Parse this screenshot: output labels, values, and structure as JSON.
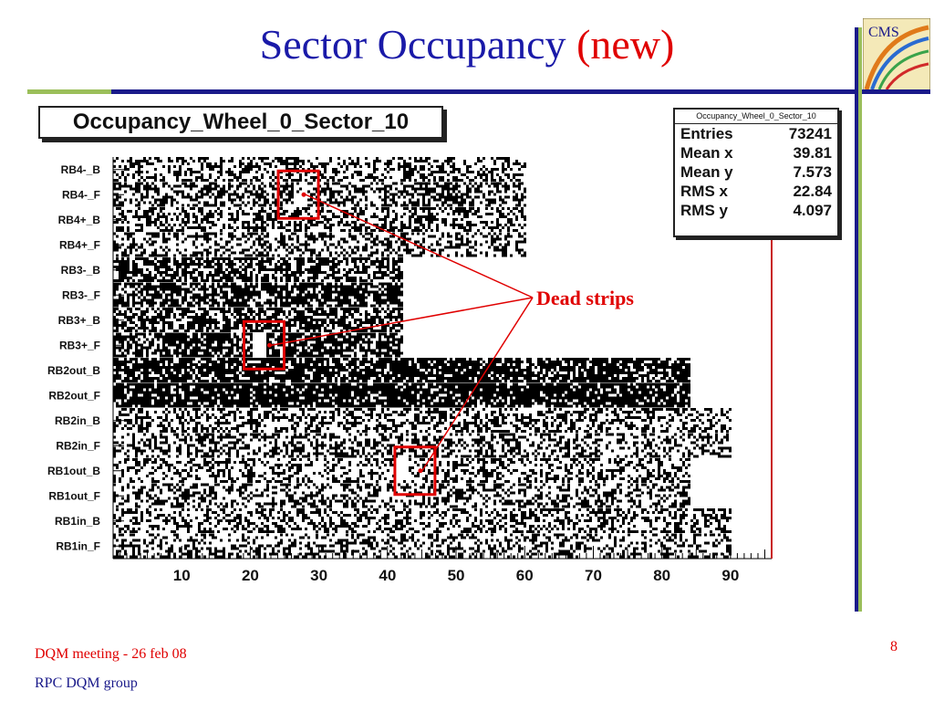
{
  "slide": {
    "title_main": "Sector Occupancy",
    "title_accent": "(new)",
    "footer_meeting": "DQM meeting - 26 feb 08",
    "footer_group": "RPC DQM group",
    "page_number": "8",
    "logo_text": "CMS",
    "colors": {
      "title": "#1a1aa8",
      "accent": "#e00000",
      "rule_dark": "#1a1a8a",
      "rule_light": "#9bbf5a"
    }
  },
  "annotation": {
    "label": "Dead strips",
    "targets": [
      {
        "x": 27,
        "y": "RB4-_F"
      },
      {
        "x": 22,
        "y": "RB3+_F"
      },
      {
        "x": 44,
        "y": "RB1out_B"
      }
    ]
  },
  "stats_box": {
    "title": "Occupancy_Wheel_0_Sector_10",
    "rows": [
      {
        "label": "Entries",
        "value": "73241"
      },
      {
        "label": "Mean x",
        "value": "39.81"
      },
      {
        "label": "Mean y",
        "value": "7.573"
      },
      {
        "label": "RMS x",
        "value": "22.84"
      },
      {
        "label": "RMS y",
        "value": "4.097"
      }
    ]
  },
  "chart_data": {
    "type": "heatmap",
    "title": "Occupancy_Wheel_0_Sector_10",
    "xlabel": "",
    "ylabel": "",
    "xlim": [
      0,
      96
    ],
    "x_ticks": [
      10,
      20,
      30,
      40,
      50,
      60,
      70,
      80,
      90
    ],
    "categories": [
      "RB4-_B",
      "RB4-_F",
      "RB4+_B",
      "RB4+_F",
      "RB3-_B",
      "RB3-_F",
      "RB3+_B",
      "RB3+_F",
      "RB2out_B",
      "RB2out_F",
      "RB2in_B",
      "RB2in_F",
      "RB1out_B",
      "RB1out_F",
      "RB1in_B",
      "RB1in_F"
    ],
    "row_strip_counts": [
      60,
      60,
      60,
      60,
      42,
      42,
      42,
      42,
      84,
      84,
      90,
      90,
      84,
      84,
      90,
      90
    ],
    "row_density": [
      0.42,
      0.52,
      0.45,
      0.4,
      0.62,
      0.66,
      0.64,
      0.7,
      0.76,
      0.82,
      0.42,
      0.4,
      0.38,
      0.4,
      0.4,
      0.36
    ],
    "dead_strips": [
      {
        "row": "RB4-_F",
        "strips": [
          27,
          28
        ]
      },
      {
        "row": "RB3+_F",
        "strips": [
          21,
          22
        ]
      },
      {
        "row": "RB1out_B",
        "strips": [
          42,
          43
        ]
      }
    ],
    "grid": false
  }
}
